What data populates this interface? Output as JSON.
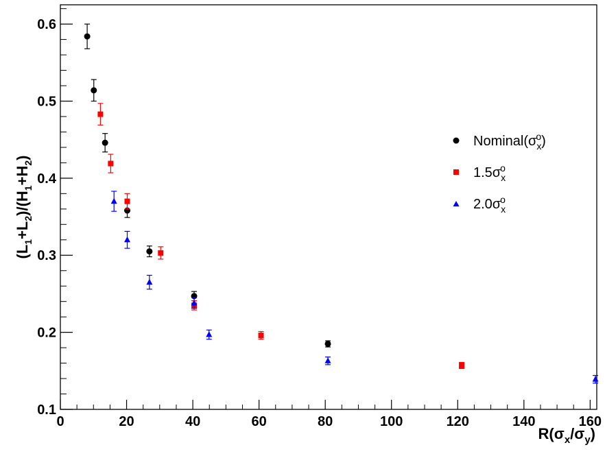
{
  "chart_data": {
    "type": "scatter",
    "title": "",
    "xlabel": "R(σx/σy)",
    "ylabel": "(L1+L2)/(H1+H2)",
    "xlim": [
      0,
      162
    ],
    "ylim": [
      0.1,
      0.625
    ],
    "x_ticks": [
      0,
      20,
      40,
      60,
      80,
      100,
      120,
      140,
      160
    ],
    "x_tick_labels": [
      "0",
      "20",
      "40",
      "60",
      "80",
      "100",
      "120",
      "140",
      "160"
    ],
    "y_ticks": [
      0.1,
      0.2,
      0.3,
      0.4,
      0.5,
      0.6
    ],
    "y_tick_labels": [
      "0.1",
      "0.2",
      "0.3",
      "0.4",
      "0.5",
      "0.6"
    ],
    "grid": false,
    "legend_position": "right",
    "series": [
      {
        "name": "Nominal(σxo)",
        "marker": "circle",
        "color": "#000000",
        "points": [
          {
            "x": 8.1,
            "y": 0.584,
            "err": 0.016
          },
          {
            "x": 10.1,
            "y": 0.514,
            "err": 0.014
          },
          {
            "x": 13.5,
            "y": 0.446,
            "err": 0.012
          },
          {
            "x": 20.2,
            "y": 0.358,
            "err": 0.009
          },
          {
            "x": 26.9,
            "y": 0.305,
            "err": 0.007
          },
          {
            "x": 40.4,
            "y": 0.247,
            "err": 0.006
          },
          {
            "x": 80.8,
            "y": 0.185,
            "err": 0.004
          }
        ]
      },
      {
        "name": "1.5σxo",
        "marker": "square",
        "color": "#ff0000",
        "points": [
          {
            "x": 12.1,
            "y": 0.483,
            "err": 0.014
          },
          {
            "x": 15.2,
            "y": 0.419,
            "err": 0.012
          },
          {
            "x": 20.2,
            "y": 0.37,
            "err": 0.01
          },
          {
            "x": 30.3,
            "y": 0.303,
            "err": 0.008
          },
          {
            "x": 40.4,
            "y": 0.235,
            "err": 0.006
          },
          {
            "x": 60.6,
            "y": 0.196,
            "err": 0.005
          },
          {
            "x": 121.2,
            "y": 0.157,
            "err": 0.004
          }
        ]
      },
      {
        "name": "2.0σxo",
        "marker": "triangle",
        "color": "#0000ff",
        "points": [
          {
            "x": 16.2,
            "y": 0.37,
            "err": 0.013
          },
          {
            "x": 20.2,
            "y": 0.32,
            "err": 0.011
          },
          {
            "x": 26.9,
            "y": 0.265,
            "err": 0.009
          },
          {
            "x": 40.4,
            "y": 0.238,
            "err": 0.007
          },
          {
            "x": 44.9,
            "y": 0.197,
            "err": 0.006
          },
          {
            "x": 80.8,
            "y": 0.163,
            "err": 0.005
          },
          {
            "x": 161.6,
            "y": 0.139,
            "err": 0.005
          }
        ]
      }
    ]
  }
}
